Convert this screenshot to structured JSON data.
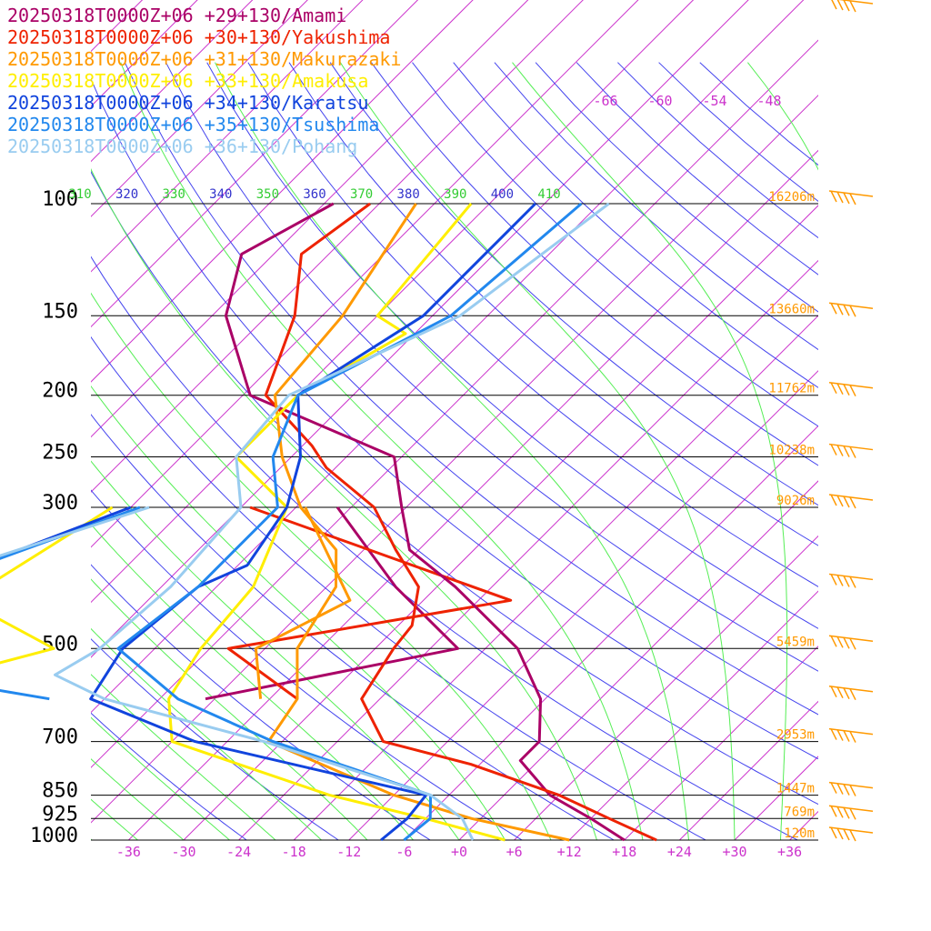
{
  "chart_data": {
    "type": "line",
    "title": "",
    "legend_placement": "top-left",
    "pressure_levels": [
      100,
      150,
      200,
      250,
      300,
      500,
      700,
      850,
      925,
      1000
    ],
    "pressure_labels": [
      "100",
      "150",
      "200",
      "250",
      "300",
      "500",
      "700",
      "850",
      "925",
      "1000"
    ],
    "heights": [
      {
        "p": 100,
        "label": "16206m"
      },
      {
        "p": 150,
        "label": "13660m"
      },
      {
        "p": 200,
        "label": "11762m"
      },
      {
        "p": 250,
        "label": "10238m"
      },
      {
        "p": 300,
        "label": "9026m"
      },
      {
        "p": 500,
        "label": "5459m"
      },
      {
        "p": 700,
        "label": "2953m"
      },
      {
        "p": 850,
        "label": "1447m"
      },
      {
        "p": 925,
        "label": "769m"
      },
      {
        "p": 1000,
        "label": "120m"
      }
    ],
    "temp_ticks": [
      -36,
      -30,
      -24,
      -18,
      -12,
      -6,
      0,
      6,
      12,
      18,
      24,
      30,
      36
    ],
    "temp_tick_labels": [
      "-36",
      "-30",
      "-24",
      "-18",
      "-12",
      "-6",
      "+0",
      "+6",
      "+12",
      "+18",
      "+24",
      "+30",
      "+36"
    ],
    "upper_temp_labels": [
      "-66",
      "-60",
      "-54",
      "-48"
    ],
    "theta_labels": [
      "310",
      "320",
      "330",
      "340",
      "350",
      "360",
      "370",
      "380",
      "390",
      "400",
      "410"
    ],
    "colors": {
      "isotherm": "#cc33cc",
      "isobar": "#000000",
      "dry_adiabat": "#3333ee",
      "moist_adiabat": "#33ee33",
      "height_label": "#ff9900",
      "wind_barb": "#ff9900",
      "temp_tick": "#cc33cc",
      "theta_dry": "#3333cc",
      "theta_moist": "#33cc33"
    },
    "series": [
      {
        "name": "20250318T0000Z+06 +29+130/Amami",
        "color": "#aa0066",
        "points": [
          [
            100,
            -83
          ],
          [
            120,
            -87.5
          ],
          [
            150,
            -82.5
          ],
          [
            200,
            -71.2
          ],
          [
            250,
            -48.8
          ],
          [
            300,
            -42.5
          ],
          [
            350,
            -37
          ],
          [
            400,
            -28
          ],
          [
            500,
            -14.5
          ],
          [
            600,
            -6.5
          ],
          [
            700,
            -2
          ],
          [
            750,
            -2
          ],
          [
            850,
            5
          ],
          [
            925,
            12
          ],
          [
            1000,
            18
          ]
        ]
      },
      {
        "name": "20250318T0000Z+06 +30+130/Yakushima",
        "color": "#ee2200",
        "points": [
          [
            100,
            -79
          ],
          [
            120,
            -81
          ],
          [
            150,
            -75
          ],
          [
            200,
            -69.5
          ],
          [
            240,
            -59
          ],
          [
            260,
            -55
          ],
          [
            300,
            -45.5
          ],
          [
            350,
            -38.5
          ],
          [
            400,
            -32
          ],
          [
            460,
            -28.5
          ],
          [
            500,
            -28
          ],
          [
            600,
            -26
          ],
          [
            700,
            -19
          ],
          [
            760,
            -7
          ],
          [
            850,
            6
          ],
          [
            925,
            14
          ],
          [
            1000,
            21.5
          ]
        ]
      },
      {
        "name": "20250318T0000Z+06 +31+130/Makurazaki",
        "color": "#ff9900",
        "points": [
          [
            100,
            -74
          ],
          [
            150,
            -69.8
          ],
          [
            200,
            -68.5
          ],
          [
            250,
            -61
          ],
          [
            300,
            -53.5
          ],
          [
            350,
            -45
          ],
          [
            400,
            -41
          ],
          [
            500,
            -38.5
          ],
          [
            600,
            -33
          ],
          [
            700,
            -31.5
          ],
          [
            850,
            -12
          ],
          [
            925,
            -1
          ],
          [
            1000,
            12
          ]
        ]
      },
      {
        "name": "20250318T0000Z+06 +33+130/Amakusa",
        "color": "#ffee00",
        "points": [
          [
            100,
            -68
          ],
          [
            150,
            -66
          ],
          [
            160,
            -61
          ],
          [
            200,
            -66
          ],
          [
            250,
            -66
          ],
          [
            300,
            -55
          ],
          [
            400,
            -50
          ],
          [
            500,
            -49
          ],
          [
            600,
            -47
          ],
          [
            700,
            -42
          ],
          [
            850,
            -19
          ],
          [
            925,
            -6
          ],
          [
            1000,
            5
          ]
        ]
      },
      {
        "name": "20250318T0000Z+06 +34+130/Karatsu",
        "color": "#1144dd",
        "points": [
          [
            100,
            -61
          ],
          [
            150,
            -61
          ],
          [
            200,
            -66
          ],
          [
            250,
            -59
          ],
          [
            300,
            -55
          ],
          [
            370,
            -53
          ],
          [
            400,
            -56
          ],
          [
            500,
            -57.5
          ],
          [
            600,
            -55.5
          ],
          [
            700,
            -39.5
          ],
          [
            850,
            -8.5
          ],
          [
            925,
            -8
          ],
          [
            1000,
            -8.5
          ]
        ]
      },
      {
        "name": "20250318T0000Z+06 +35+130/Tsushima",
        "color": "#2288ee",
        "points": [
          [
            100,
            -56
          ],
          [
            150,
            -58
          ],
          [
            200,
            -66
          ],
          [
            250,
            -62
          ],
          [
            300,
            -56
          ],
          [
            400,
            -56
          ],
          [
            500,
            -58
          ],
          [
            600,
            -46
          ],
          [
            700,
            -31
          ],
          [
            850,
            -8
          ],
          [
            925,
            -5.5
          ],
          [
            1000,
            -6
          ]
        ]
      },
      {
        "name": "20250318T0000Z+06 +36+130/Pohang",
        "color": "#99ccf0",
        "points": [
          [
            100,
            -53
          ],
          [
            150,
            -57
          ],
          [
            200,
            -67
          ],
          [
            250,
            -66
          ],
          [
            300,
            -60
          ],
          [
            400,
            -59
          ],
          [
            500,
            -60
          ],
          [
            550,
            -62
          ],
          [
            600,
            -54
          ],
          [
            700,
            -32
          ],
          [
            850,
            -8
          ],
          [
            925,
            -2
          ],
          [
            1000,
            1.5
          ]
        ]
      }
    ],
    "dewpoint_series": [
      {
        "name": "Amami",
        "color": "#aa0066",
        "points": [
          [
            300,
            -49.5
          ],
          [
            400,
            -34.5
          ],
          [
            500,
            -21
          ],
          [
            600,
            -43
          ]
        ]
      },
      {
        "name": "Yakushima",
        "color": "#ee2200",
        "points": [
          [
            300,
            -59
          ],
          [
            420,
            -20.5
          ],
          [
            500,
            -46
          ],
          [
            600,
            -33
          ]
        ]
      },
      {
        "name": "Makurazaki",
        "color": "#ff9900",
        "points": [
          [
            300,
            -53
          ],
          [
            420,
            -38
          ],
          [
            500,
            -43
          ],
          [
            600,
            -37
          ]
        ]
      },
      {
        "name": "Amakusa",
        "color": "#ffee00",
        "points": [
          [
            300,
            -74
          ],
          [
            420,
            -80
          ],
          [
            500,
            -65
          ],
          [
            550,
            -73
          ],
          [
            600,
            -76
          ]
        ]
      },
      {
        "name": "Karatsu",
        "color": "#1144dd",
        "points": [
          [
            300,
            -72
          ],
          [
            400,
            -86
          ],
          [
            500,
            -90
          ],
          [
            600,
            -80
          ]
        ]
      },
      {
        "name": "Tsushima",
        "color": "#2288ee",
        "points": [
          [
            300,
            -71
          ],
          [
            400,
            -86
          ],
          [
            500,
            -98
          ],
          [
            600,
            -60
          ]
        ]
      },
      {
        "name": "Pohang",
        "color": "#99ccf0",
        "points": [
          [
            300,
            -70
          ],
          [
            400,
            -88
          ],
          [
            500,
            -92
          ]
        ]
      }
    ],
    "wind_barb_levels": [
      80,
      100,
      150,
      200,
      250,
      300,
      400,
      500,
      600,
      700,
      850,
      925,
      1000
    ]
  }
}
